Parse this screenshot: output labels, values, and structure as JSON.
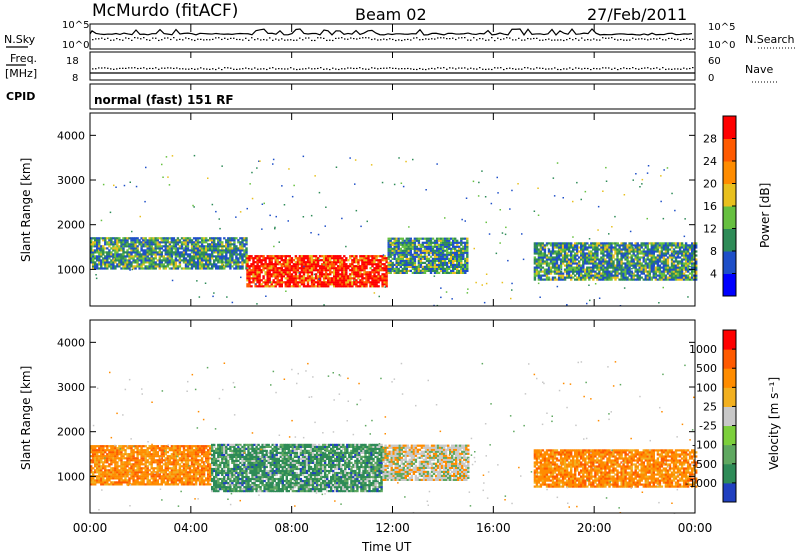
{
  "header": {
    "station": "McMurdo (fitACF)",
    "beam": "Beam 02",
    "date": "27/Feb/2011"
  },
  "summary_panels": {
    "nsky_label": "N.Sky",
    "nsky_ticks": [
      "10^5",
      "10^0"
    ],
    "nsearch_label": "N.Search",
    "nsearch_ticks": [
      "10^5",
      "10^0"
    ],
    "freq_label_1": "Freq.",
    "freq_label_2": "[MHz]",
    "freq_ticks": [
      "18",
      "8"
    ],
    "nave_label": "Nave",
    "nave_ticks": [
      "60",
      "0"
    ],
    "cpid_label": "CPID",
    "cpid_value": "normal (fast) 151 RF"
  },
  "chart_data": [
    {
      "type": "heatmap",
      "name": "power",
      "ylabel": "Slant Range [km]",
      "ylim": [
        180,
        4500
      ],
      "yticks": [
        "4000",
        "3000",
        "2000",
        "1000"
      ],
      "xlim_hours": [
        0,
        24
      ],
      "colorbar_label": "Power [dB]",
      "colorbar_ticks": [
        "28",
        "24",
        "20",
        "16",
        "12",
        "8",
        "4"
      ],
      "colorbar_colors": [
        "#0000ff",
        "#1e4fc8",
        "#2e8b57",
        "#66c040",
        "#e8c01e",
        "#ff8c00",
        "#ff5a00",
        "#ff0000"
      ],
      "echo_bands": [
        {
          "t0": 0.0,
          "t1": 6.2,
          "r_lo": 1000,
          "r_hi": 1700,
          "level": "medium"
        },
        {
          "t0": 6.2,
          "t1": 11.8,
          "r_lo": 600,
          "r_hi": 1300,
          "level": "strong"
        },
        {
          "t0": 11.8,
          "t1": 15.0,
          "r_lo": 900,
          "r_hi": 1700,
          "level": "medium"
        },
        {
          "t0": 17.6,
          "t1": 24.0,
          "r_lo": 750,
          "r_hi": 1600,
          "level": "medium"
        }
      ]
    },
    {
      "type": "heatmap",
      "name": "velocity",
      "xlabel": "Time UT",
      "xticks": [
        "00:00",
        "04:00",
        "08:00",
        "12:00",
        "16:00",
        "20:00",
        "00:00"
      ],
      "ylabel": "Slant Range [km]",
      "ylim": [
        180,
        4500
      ],
      "yticks": [
        "4000",
        "3000",
        "2000",
        "1000"
      ],
      "colorbar_label": "Velocity [m s⁻¹]",
      "colorbar_ticks": [
        "1000",
        "500",
        "100",
        "25",
        "-25",
        "-100",
        "-500",
        "-1000"
      ],
      "colorbar_colors": [
        "#2040c0",
        "#2e8b57",
        "#5fa860",
        "#7ccf3c",
        "#c8c8c8",
        "#f2b020",
        "#ff8c00",
        "#ff5a00",
        "#ff0000"
      ],
      "echo_bands": [
        {
          "t0": 0.0,
          "t1": 4.8,
          "r_lo": 800,
          "r_hi": 1700,
          "sign": "away"
        },
        {
          "t0": 4.8,
          "t1": 11.6,
          "r_lo": 650,
          "r_hi": 1700,
          "sign": "toward"
        },
        {
          "t0": 11.6,
          "t1": 15.0,
          "r_lo": 900,
          "r_hi": 1700,
          "sign": "mixed"
        },
        {
          "t0": 17.6,
          "t1": 24.0,
          "r_lo": 750,
          "r_hi": 1600,
          "sign": "away"
        }
      ]
    }
  ]
}
